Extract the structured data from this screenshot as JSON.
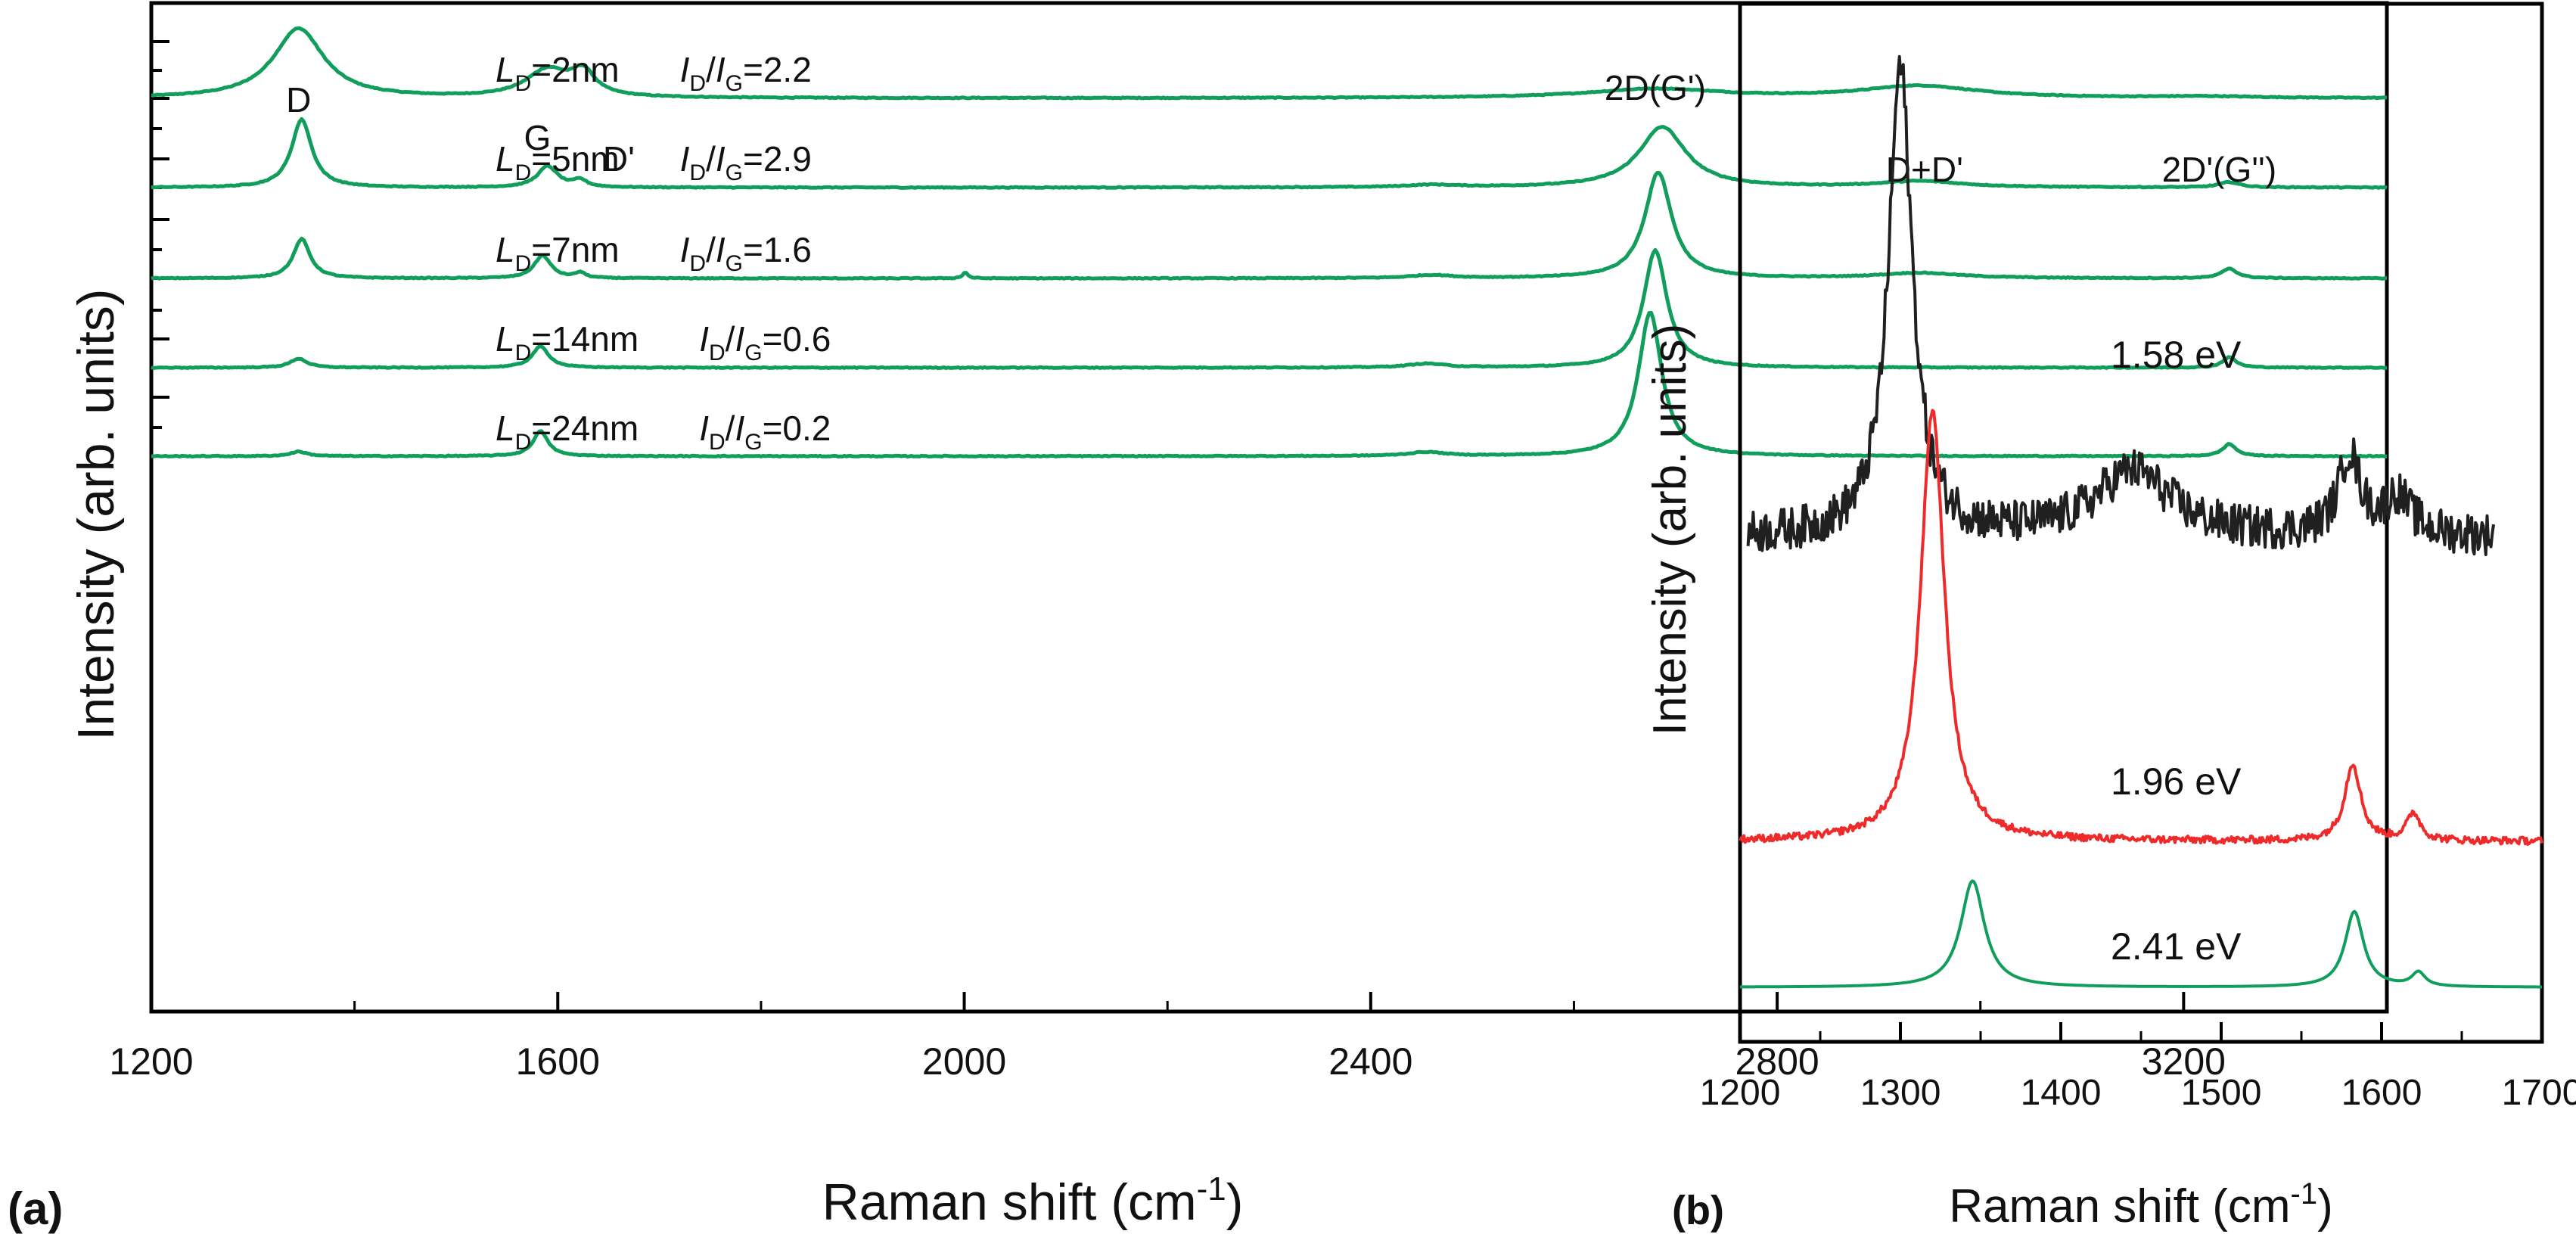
{
  "colors": {
    "green": "#119e5c",
    "red": "#ee2a2a",
    "black": "#202020",
    "axis": "#000000"
  },
  "chart_data": [
    {
      "panel": "(a)",
      "type": "line",
      "xlabel": "Raman shift (cm",
      "xlabel_sup": "-1",
      "xlabel_close": ")",
      "ylabel": "Intensity (arb. units)",
      "xlim": [
        1200,
        3400
      ],
      "xticks": [
        1200,
        1600,
        2000,
        2400,
        2800,
        3200
      ],
      "xtick_labels": [
        "1200",
        "1600",
        "2000",
        "2400",
        "2800",
        "3200"
      ],
      "peak_labels": [
        {
          "text": "D",
          "x": 1345
        },
        {
          "text": "G",
          "x": 1580
        },
        {
          "text": "D'",
          "x": 1660
        },
        {
          "text": "2D(G')",
          "x": 2680
        },
        {
          "text": "D+D'",
          "x": 2945
        },
        {
          "text": "2D'(G'')",
          "x": 3235
        }
      ],
      "series": [
        {
          "name": "LD=2nm",
          "ld_value": "=2nm",
          "ratio_value": "=2.2",
          "peaks": [
            {
              "x": 1345,
              "h": 0.92,
              "w": 30
            },
            {
              "x": 1590,
              "h": 0.36,
              "w": 26
            },
            {
              "x": 1625,
              "h": 0.3,
              "w": 14
            },
            {
              "x": 2680,
              "h": 0.12,
              "w": 80
            },
            {
              "x": 2940,
              "h": 0.16,
              "w": 70
            },
            {
              "x": 3220,
              "h": 0.02,
              "w": 60
            }
          ]
        },
        {
          "name": "LD=5nm",
          "ld_value": "=5nm",
          "ratio_value": "=2.9",
          "peaks": [
            {
              "x": 1348,
              "h": 0.9,
              "w": 12
            },
            {
              "x": 1590,
              "h": 0.28,
              "w": 12
            },
            {
              "x": 1622,
              "h": 0.09,
              "w": 8
            },
            {
              "x": 2460,
              "h": 0.03,
              "w": 30
            },
            {
              "x": 2687,
              "h": 0.8,
              "w": 28
            },
            {
              "x": 2940,
              "h": 0.08,
              "w": 50
            },
            {
              "x": 3245,
              "h": 0.07,
              "w": 12
            }
          ]
        },
        {
          "name": "LD=7nm",
          "ld_value": "=7nm",
          "ratio_value": "=1.6",
          "peaks": [
            {
              "x": 1348,
              "h": 0.52,
              "w": 10
            },
            {
              "x": 1585,
              "h": 0.3,
              "w": 10
            },
            {
              "x": 1622,
              "h": 0.07,
              "w": 6
            },
            {
              "x": 2001,
              "h": 0.08,
              "w": 3
            },
            {
              "x": 2460,
              "h": 0.04,
              "w": 25
            },
            {
              "x": 2683,
              "h": 1.4,
              "w": 16
            },
            {
              "x": 2940,
              "h": 0.07,
              "w": 50
            },
            {
              "x": 3245,
              "h": 0.13,
              "w": 9
            }
          ]
        },
        {
          "name": "LD=14nm",
          "ld_value": "=14nm",
          "ratio_value": "=0.6",
          "peaks": [
            {
              "x": 1345,
              "h": 0.12,
              "w": 10
            },
            {
              "x": 1583,
              "h": 0.28,
              "w": 10
            },
            {
              "x": 2455,
              "h": 0.05,
              "w": 22
            },
            {
              "x": 2680,
              "h": 1.55,
              "w": 14
            },
            {
              "x": 3245,
              "h": 0.14,
              "w": 8
            }
          ]
        },
        {
          "name": "LD=24nm",
          "ld_value": "=24nm",
          "ratio_value": "=0.2",
          "peaks": [
            {
              "x": 1345,
              "h": 0.06,
              "w": 10
            },
            {
              "x": 1583,
              "h": 0.33,
              "w": 9
            },
            {
              "x": 2455,
              "h": 0.05,
              "w": 22
            },
            {
              "x": 2675,
              "h": 1.9,
              "w": 14
            },
            {
              "x": 3245,
              "h": 0.16,
              "w": 8
            }
          ]
        }
      ]
    },
    {
      "panel": "(b)",
      "type": "line",
      "xlabel": "Raman shift (cm",
      "xlabel_sup": "-1",
      "xlabel_close": ")",
      "ylabel": "Intensity (arb. units)",
      "xlim": [
        1200,
        1700
      ],
      "xticks": [
        1200,
        1300,
        1400,
        1500,
        1600,
        1700
      ],
      "xtick_labels": [
        "1200",
        "1300",
        "1400",
        "1500",
        "1600",
        "1700"
      ],
      "series": [
        {
          "name": "1.58 eV",
          "label": "1.58 eV",
          "color": "black",
          "x_range": [
            1205,
            1670
          ],
          "noise": "high",
          "peaks": [
            {
              "x": 1300,
              "h": 1.0,
              "w": 9
            },
            {
              "x": 1445,
              "h": 0.14,
              "w": 28
            },
            {
              "x": 1580,
              "h": 0.17,
              "w": 8
            },
            {
              "x": 1610,
              "h": 0.08,
              "w": 10
            }
          ]
        },
        {
          "name": "1.96 eV",
          "label": "1.96 eV",
          "color": "red",
          "x_range": [
            1200,
            1700
          ],
          "noise": "low",
          "peaks": [
            {
              "x": 1320,
              "h": 0.95,
              "w": 9
            },
            {
              "x": 1582,
              "h": 0.17,
              "w": 6
            },
            {
              "x": 1620,
              "h": 0.06,
              "w": 5
            }
          ]
        },
        {
          "name": "2.41 eV",
          "label": "2.41 eV",
          "color": "green",
          "x_range": [
            1200,
            1700
          ],
          "noise": "none",
          "peaks": [
            {
              "x": 1345,
              "h": 0.38,
              "w": 9
            },
            {
              "x": 1583,
              "h": 0.27,
              "w": 7
            },
            {
              "x": 1623,
              "h": 0.05,
              "w": 5
            }
          ]
        }
      ]
    }
  ],
  "panel_labels": {
    "a": "(a)",
    "b": "(b)"
  },
  "legend_text": {
    "L": "L",
    "D": "D",
    "I": "I",
    "G": "G",
    "slash": "/"
  }
}
